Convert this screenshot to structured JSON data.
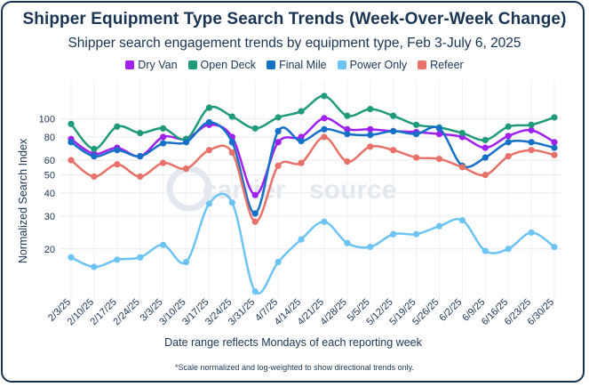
{
  "title": "Shipper Equipment Type Search Trends (Week-Over-Week Change)",
  "subtitle": "Shipper search engagement trends by equipment type, Feb 3-July 6, 2025",
  "footnote": "*Scale normalized and log-weighted to show directional trends only.",
  "watermark": {
    "brand_a": "carrier",
    "brand_b": "source"
  },
  "chart_data": {
    "type": "line",
    "scale": "log",
    "xlabel": "Date range reflects Mondays of each reporting week",
    "ylabel": "Normalized Search Index",
    "ylim": [
      11.5,
      145
    ],
    "yticks": [
      20,
      30,
      40,
      50,
      60,
      80,
      100
    ],
    "categories": [
      "2/3/25",
      "2/10/25",
      "2/17/25",
      "2/24/25",
      "3/3/25",
      "3/10/25",
      "3/17/25",
      "3/24/25",
      "3/31/25",
      "4/7/25",
      "4/14/25",
      "4/21/25",
      "4/28/25",
      "5/5/25",
      "5/12/25",
      "5/19/25",
      "5/26/25",
      "6/2/25",
      "6/9/25",
      "6/16/25",
      "6/23/25",
      "6/30/25"
    ],
    "series": [
      {
        "name": "Dry Van",
        "color": "#a020f0",
        "values": [
          78,
          65,
          70,
          63,
          80,
          78,
          93,
          80,
          39,
          75,
          80,
          101,
          88,
          88,
          86,
          85,
          83,
          80,
          70,
          81,
          87,
          75
        ]
      },
      {
        "name": "Open Deck",
        "color": "#1f9a7a",
        "values": [
          94,
          69,
          91,
          84,
          89,
          78,
          115,
          103,
          89,
          102,
          110,
          133,
          104,
          113,
          104,
          93,
          90,
          84,
          77,
          91,
          93,
          102
        ]
      },
      {
        "name": "Final Mile",
        "color": "#1570c8",
        "values": [
          75,
          63,
          68,
          63,
          74,
          75,
          96,
          75,
          31,
          86,
          76,
          88,
          83,
          82,
          86,
          83,
          89,
          56,
          62,
          75,
          75,
          70
        ]
      },
      {
        "name": "Power Only",
        "color": "#6cc4f5",
        "values": [
          18,
          16,
          17.5,
          18,
          21,
          17,
          35,
          35.5,
          11.8,
          17,
          22.5,
          28,
          21.5,
          20.5,
          24,
          24,
          26.5,
          28.5,
          19.5,
          20,
          24.5,
          20.5
        ]
      },
      {
        "name": "Refeer",
        "color": "#e8726a",
        "values": [
          60,
          49,
          57,
          49,
          58,
          54,
          68,
          66,
          28,
          56,
          58,
          80,
          59,
          71,
          68,
          62,
          61,
          55,
          50,
          63,
          68,
          64
        ]
      }
    ]
  }
}
